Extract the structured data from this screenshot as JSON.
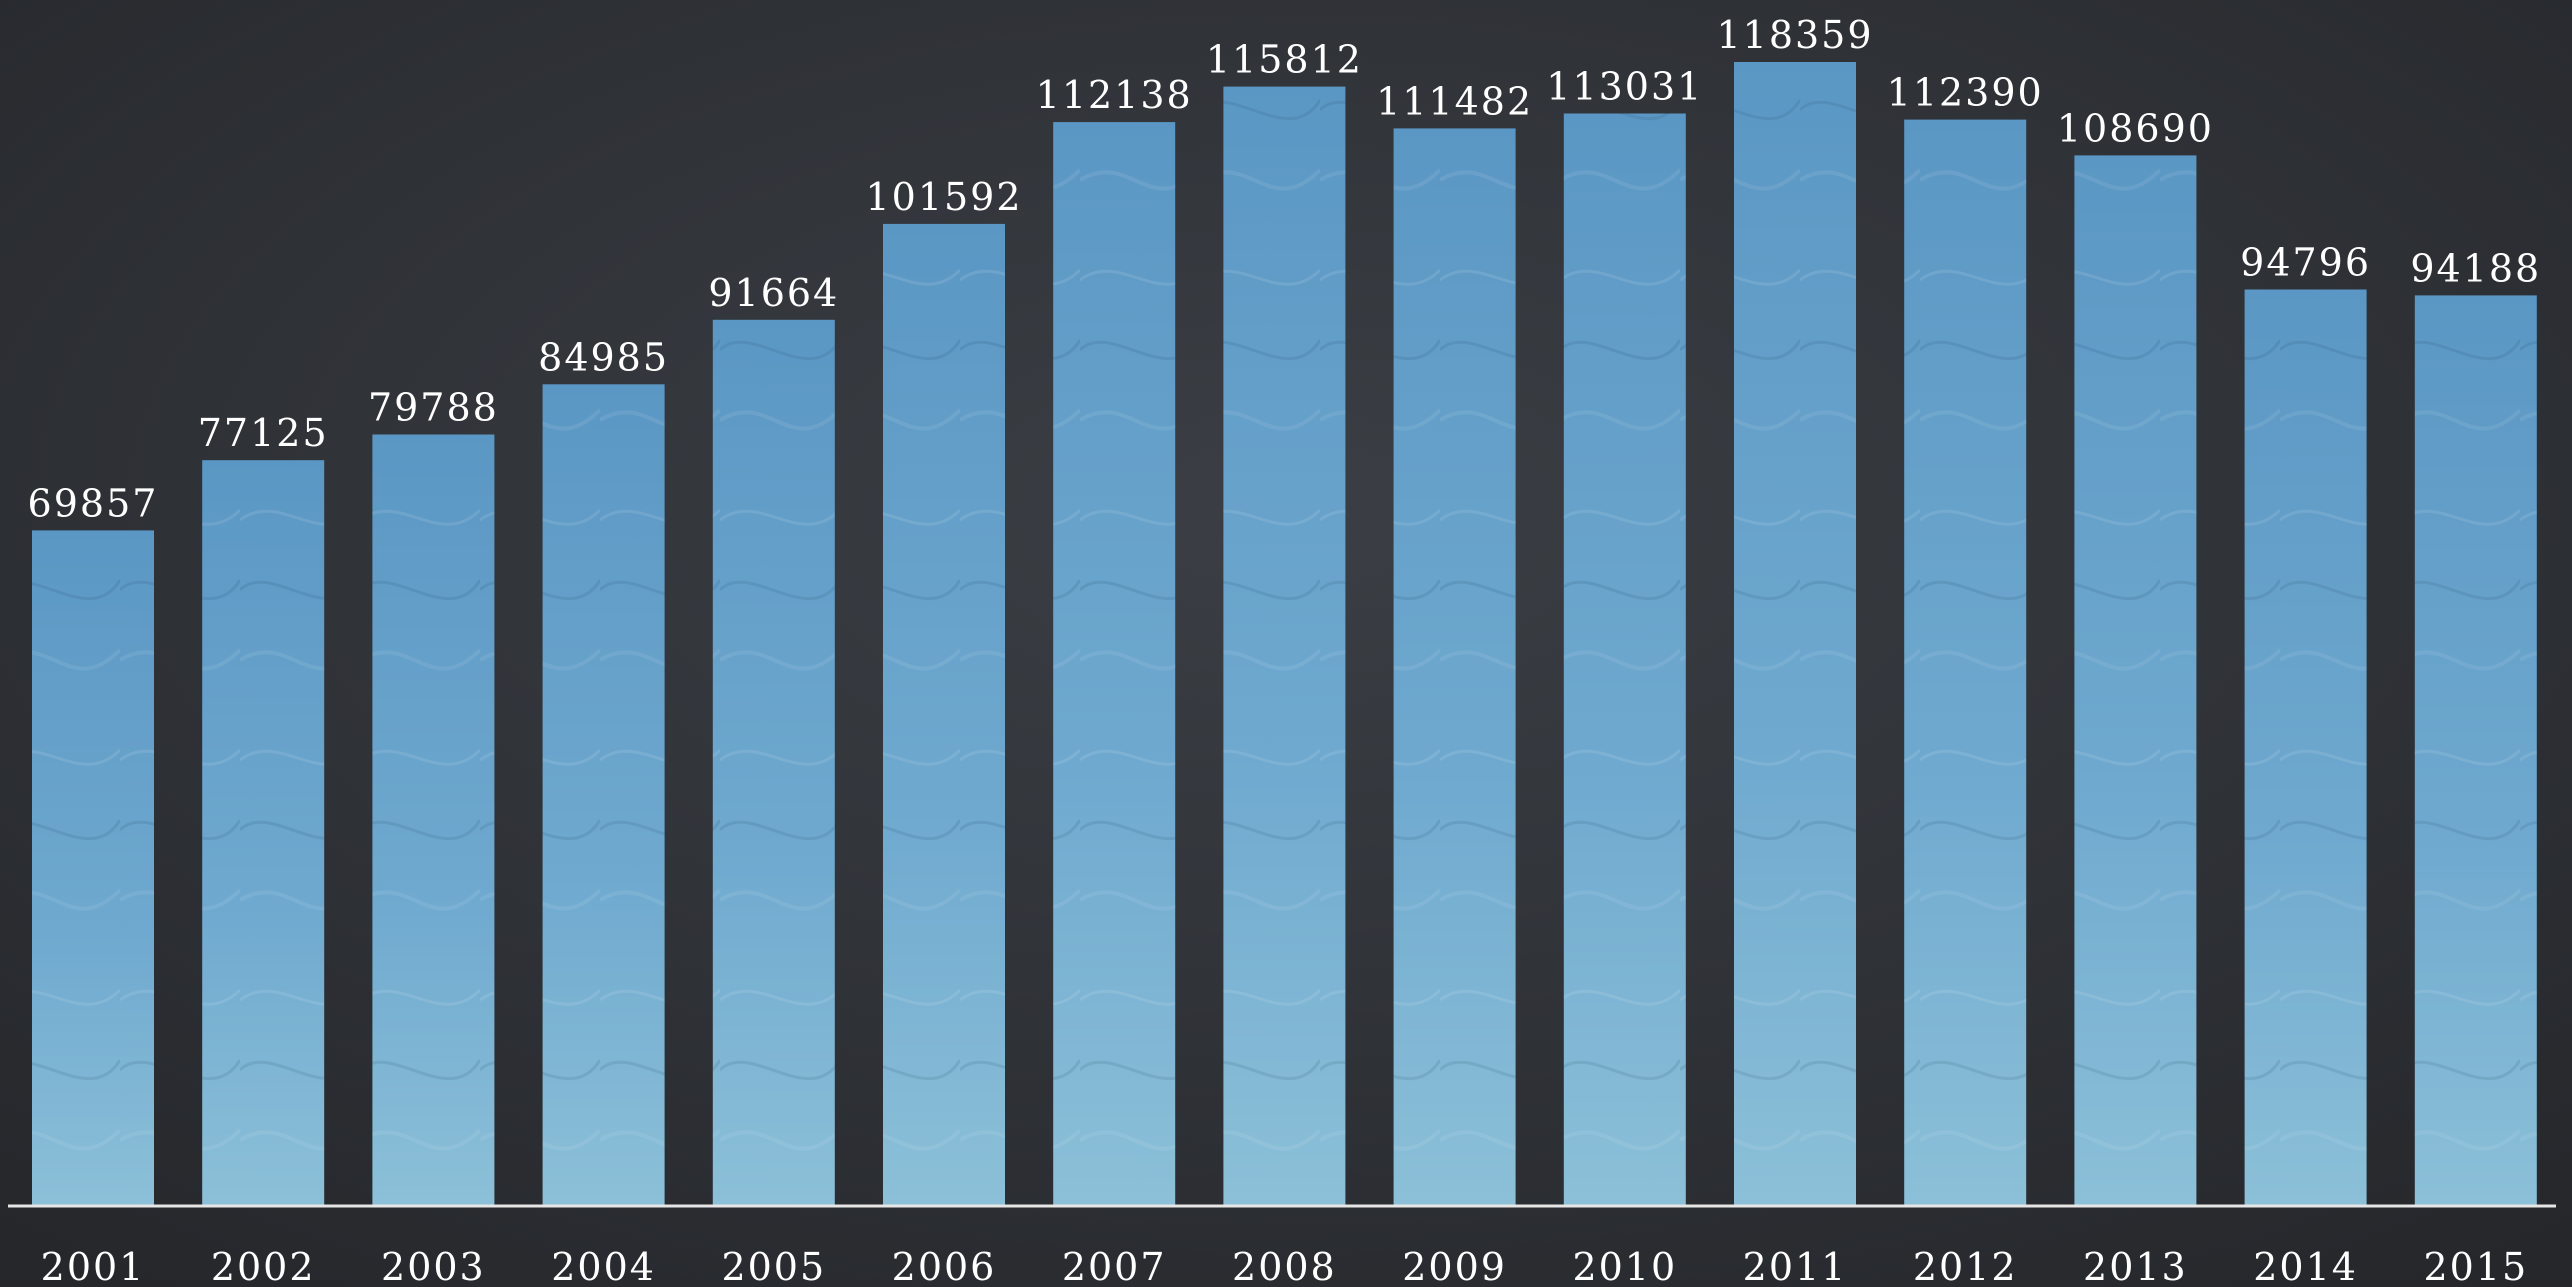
{
  "chart_data": {
    "type": "bar",
    "categories": [
      "2001",
      "2002",
      "2003",
      "2004",
      "2005",
      "2006",
      "2007",
      "2008",
      "2009",
      "2010",
      "2011",
      "2012",
      "2013",
      "2014",
      "2015"
    ],
    "values": [
      69857,
      77125,
      79788,
      84985,
      91664,
      101592,
      112138,
      115812,
      111482,
      113031,
      118359,
      112390,
      108690,
      94796,
      94188
    ],
    "value_labels": [
      "69857",
      "77125",
      "79788",
      "84985",
      "91664",
      "101592",
      "112138",
      "115812",
      "111482",
      "113031",
      "118359",
      "112390",
      "108690",
      "94796",
      "94188"
    ],
    "ylim": [
      0,
      118359
    ],
    "grid": false,
    "legend": "none",
    "colors": {
      "background": "#2f3237",
      "bar_top": "#5f9cc9",
      "bar_bottom": "#84bad6",
      "text": "#ffffff",
      "baseline": "#e6e6e6"
    }
  }
}
